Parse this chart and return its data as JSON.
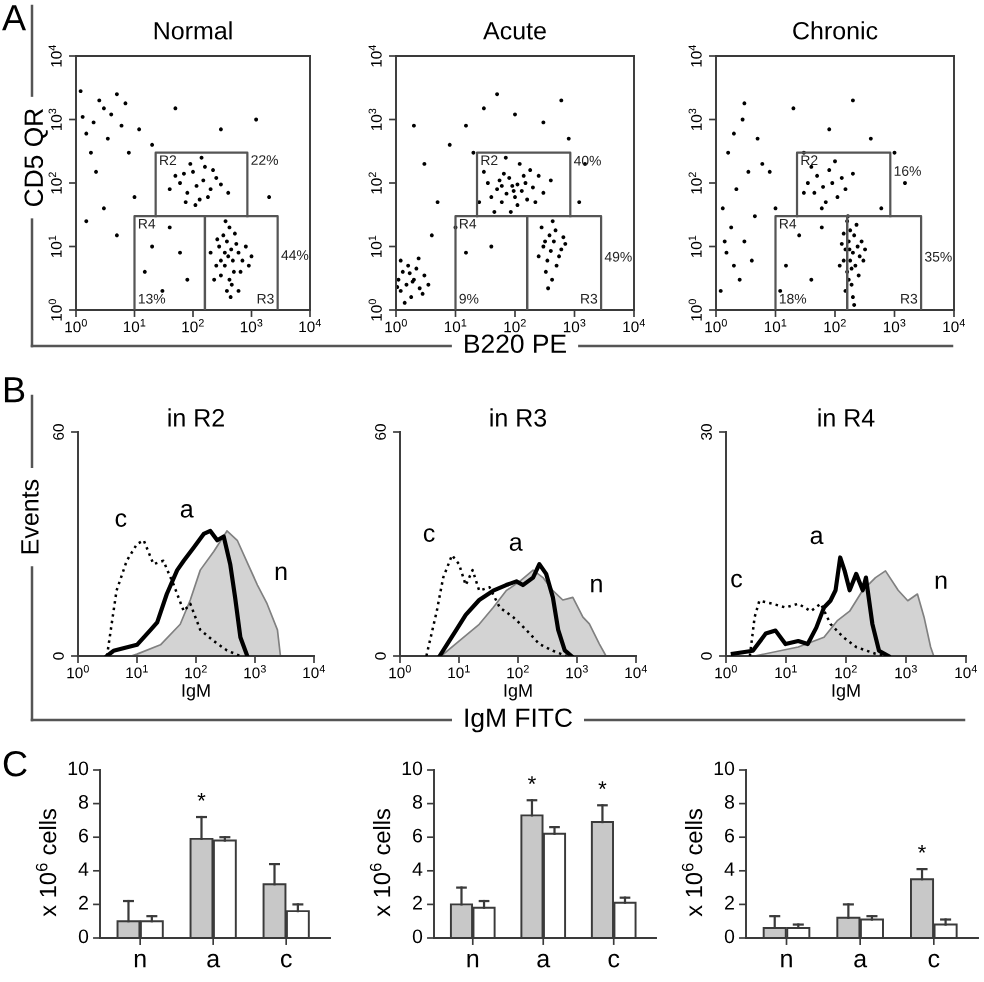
{
  "chart_data": [
    {
      "type": "scatter",
      "title": "Normal",
      "ylabel": "CD5 QR",
      "log": "xy",
      "xlim": [
        1,
        10000
      ],
      "ylim": [
        1,
        10000
      ],
      "xticks": [
        {
          "value": 1,
          "label": "10$^{0}$"
        },
        {
          "value": 10,
          "label": "10$^{1}$"
        },
        {
          "value": 100,
          "label": "10$^{2}$"
        },
        {
          "value": 1000,
          "label": "10$^{3}$"
        },
        {
          "value": 10000,
          "label": "10$^{4}$"
        }
      ],
      "yticks": [
        {
          "value": 1,
          "label": "10$^{0}$"
        },
        {
          "value": 10,
          "label": "10$^{1}$"
        },
        {
          "value": 100,
          "label": "10$^{2}$"
        },
        {
          "value": 1000,
          "label": "10$^{3}$"
        },
        {
          "value": 10000,
          "label": "10$^{4}$"
        }
      ],
      "annotations": [
        "A",
        {
          "text": "R2",
          "x": 23,
          "y": 300
        },
        {
          "text": "22%",
          "x": 850,
          "y": 220
        },
        {
          "text": "R4",
          "x": 10,
          "y": 30
        },
        {
          "text": "44%",
          "x": 2800,
          "y": 7
        },
        {
          "text": "13%",
          "x": 10,
          "y": 1.05
        },
        {
          "text": "R3",
          "x": 2800,
          "y": 1.05
        }
      ],
      "series": [
        {
          "type": "scatter",
          "marker": "circle",
          "color": "#000000",
          "x": [
            400,
            350,
            450,
            300,
            500,
            380,
            420,
            600,
            280,
            250,
            700,
            330,
            460,
            550,
            380,
            650,
            300,
            520,
            420,
            200,
            800,
            350,
            480,
            260,
            900,
            600,
            230,
            1000,
            440,
            360,
            115,
            80,
            150,
            60,
            200,
            100,
            130,
            250,
            70,
            180,
            40,
            300,
            90,
            160,
            110,
            220,
            50,
            400,
            140,
            75,
            2,
            3,
            1.5,
            4,
            2.5,
            6,
            1.3,
            3.5,
            8,
            1.8,
            5,
            2.2,
            12,
            1.2,
            7,
            20,
            15,
            40,
            30,
            60,
            3,
            5,
            1.5,
            80,
            20,
            50,
            300,
            1200,
            2000,
            10
          ],
          "values": [
            7,
            5,
            9,
            6,
            4,
            12,
            3,
            8,
            10,
            5,
            6,
            15,
            2.5,
            11,
            2,
            4,
            3.5,
            16,
            20,
            8,
            10,
            8,
            6,
            13,
            5,
            2,
            3,
            7,
            1.6,
            25,
            90,
            70,
            110,
            100,
            80,
            150,
            55,
            120,
            140,
            60,
            80,
            95,
            200,
            180,
            45,
            160,
            130,
            70,
            250,
            50,
            900,
            1500,
            600,
            1200,
            2000,
            800,
            1100,
            500,
            300,
            300,
            2500,
            150,
            700,
            2800,
            1800,
            10,
            4,
            20,
            2,
            8,
            40,
            15,
            25,
            3,
            400,
            1500,
            700,
            1000,
            60,
            60
          ]
        },
        {
          "type": "line",
          "color": "#555555",
          "x": [
            23,
            23,
            850,
            850
          ],
          "values": [
            30,
            300,
            300,
            30
          ]
        },
        {
          "type": "line",
          "color": "#555555",
          "x": [
            10,
            10,
            160,
            160
          ],
          "values": [
            1.05,
            30,
            30,
            1.05
          ]
        },
        {
          "type": "line",
          "color": "#555555",
          "x": [
            160,
            160,
            2800,
            2800
          ],
          "values": [
            1.05,
            30,
            30,
            1.05
          ]
        }
      ]
    },
    {
      "type": "scatter",
      "title": "Acute",
      "xlabel": "B220 PE",
      "log": "xy",
      "xlim": [
        1,
        10000
      ],
      "ylim": [
        1,
        10000
      ],
      "xticks": [
        {
          "value": 1,
          "label": "10$^{0}$"
        },
        {
          "value": 10,
          "label": "10$^{1}$"
        },
        {
          "value": 100,
          "label": "10$^{2}$"
        },
        {
          "value": 1000,
          "label": "10$^{3}$"
        },
        {
          "value": 10000,
          "label": "10$^{4}$"
        }
      ],
      "yticks": [
        {
          "value": 1,
          "label": "10$^{0}$"
        },
        {
          "value": 10,
          "label": "10$^{1}$"
        },
        {
          "value": 100,
          "label": "10$^{2}$"
        },
        {
          "value": 1000,
          "label": "10$^{3}$"
        },
        {
          "value": 10000,
          "label": "10$^{4}$"
        }
      ],
      "annotations": [
        {
          "text": "R2",
          "x": 23,
          "y": 300
        },
        {
          "text": "40%",
          "x": 850,
          "y": 215
        },
        {
          "text": "R4",
          "x": 10,
          "y": 30
        },
        {
          "text": "49%",
          "x": 2800,
          "y": 6.6
        },
        {
          "text": "9%",
          "x": 10,
          "y": 1.05
        },
        {
          "text": "R3",
          "x": 2800,
          "y": 1.05
        }
      ],
      "series": [
        {
          "type": "scatter",
          "marker": "circle",
          "color": "#000000",
          "x": [
            1.5,
            1.2,
            2,
            1.3,
            1.8,
            2.5,
            1.1,
            1.6,
            3,
            1.4,
            2.2,
            1.2,
            1.9,
            2.8,
            1.05,
            3.5,
            1.7,
            2.4,
            72,
            50,
            100,
            60,
            90,
            130,
            40,
            150,
            80,
            200,
            35,
            110,
            65,
            250,
            45,
            120,
            160,
            55,
            300,
            85,
            25,
            180,
            70,
            400,
            140,
            30,
            95,
            60,
            220,
            110,
            400,
            350,
            450,
            300,
            500,
            380,
            420,
            600,
            280,
            550,
            330,
            480,
            700,
            250,
            360,
            650,
            430,
            320,
            5,
            3,
            8,
            15,
            30,
            100,
            300,
            800,
            1500,
            10,
            4,
            20,
            600,
            2,
            50,
            15,
            1200,
            40
          ],
          "values": [
            2.5,
            2,
            3,
            4,
            1.6,
            2.2,
            3,
            5,
            3.5,
            1.3,
            4.5,
            6,
            2.8,
            1.8,
            2.3,
            2.5,
            3.8,
            6.5,
            68,
            80,
            60,
            50,
            90,
            75,
            60,
            100,
            120,
            85,
            100,
            45,
            140,
            130,
            35,
            200,
            55,
            110,
            70,
            35,
            50,
            160,
            250,
            110,
            130,
            150,
            75,
            90,
            50,
            95,
            8.5,
            6,
            12,
            10,
            5,
            15,
            3,
            9,
            20,
            7,
            4,
            18,
            11,
            7,
            2.2,
            14,
            25,
            12,
            50,
            200,
            400,
            800,
            1500,
            1200,
            900,
            500,
            200,
            20,
            15,
            300,
            2000,
            800,
            2500,
            8,
            50,
            10
          ]
        },
        {
          "type": "line",
          "color": "#555555",
          "x": [
            23,
            23,
            850,
            850
          ],
          "values": [
            30,
            300,
            300,
            30
          ]
        },
        {
          "type": "line",
          "color": "#555555",
          "x": [
            10,
            10,
            160,
            160
          ],
          "values": [
            1.05,
            30,
            30,
            1.05
          ]
        },
        {
          "type": "line",
          "color": "#555555",
          "x": [
            160,
            160,
            2800,
            2800
          ],
          "values": [
            1.05,
            30,
            30,
            1.05
          ]
        }
      ]
    },
    {
      "type": "scatter",
      "title": "Chronic",
      "log": "xy",
      "xlim": [
        1,
        10000
      ],
      "ylim": [
        1,
        10000
      ],
      "xticks": [
        {
          "value": 1,
          "label": "10$^{0}$"
        },
        {
          "value": 10,
          "label": "10$^{1}$"
        },
        {
          "value": 100,
          "label": "10$^{2}$"
        },
        {
          "value": 1000,
          "label": "10$^{3}$"
        },
        {
          "value": 10000,
          "label": "10$^{4}$"
        }
      ],
      "yticks": [
        {
          "value": 1,
          "label": "10$^{0}$"
        },
        {
          "value": 10,
          "label": "10$^{1}$"
        },
        {
          "value": 100,
          "label": "10$^{2}$"
        },
        {
          "value": 1000,
          "label": "10$^{3}$"
        },
        {
          "value": 10000,
          "label": "10$^{4}$"
        }
      ],
      "annotations": [
        {
          "text": "R2",
          "x": 23,
          "y": 300
        },
        {
          "text": "16%",
          "x": 850,
          "y": 148
        },
        {
          "text": "R4",
          "x": 10,
          "y": 30
        },
        {
          "text": "35%",
          "x": 2800,
          "y": 6.6
        },
        {
          "text": "18%",
          "x": 10,
          "y": 1.05
        },
        {
          "text": "R3",
          "x": 2800,
          "y": 1.05
        }
      ],
      "series": [
        {
          "type": "scatter",
          "marker": "circle",
          "color": "#000000",
          "x": [
            180,
            160,
            200,
            170,
            220,
            150,
            190,
            240,
            180,
            140,
            210,
            170,
            260,
            200,
            130,
            230,
            160,
            190,
            280,
            150,
            250,
            175,
            120,
            300,
            210,
            140,
            165,
            320,
            63,
            45,
            90,
            50,
            110,
            35,
            80,
            130,
            70,
            40,
            150,
            100,
            60,
            200,
            30,
            2,
            1.5,
            2.5,
            3,
            1.8,
            4,
            1.3,
            2.2,
            3.5,
            1.6,
            5,
            2.8,
            1.2,
            4.5,
            2,
            6,
            3,
            1.4,
            15,
            25,
            40,
            10,
            60,
            30,
            80,
            400,
            1000,
            12,
            600,
            20,
            200,
            1500,
            8
          ],
          "values": [
            6,
            4,
            8,
            12,
            5,
            9,
            2.5,
            10,
            18,
            6,
            15,
            3,
            7,
            1.6,
            11,
            22,
            25,
            4.5,
            12,
            2,
            3.5,
            9,
            5,
            6,
            1.2,
            16,
            30,
            9,
            87,
            70,
            100,
            130,
            60,
            100,
            160,
            120,
            50,
            180,
            80,
            220,
            40,
            140,
            70,
            5,
            8,
            3,
            12,
            20,
            6,
            40,
            80,
            150,
            300,
            500,
            1000,
            2,
            30,
            600,
            200,
            1800,
            12,
            5,
            15,
            3,
            40,
            20,
            300,
            700,
            500,
            300,
            2,
            40,
            1500,
            2000,
            100,
            150
          ]
        },
        {
          "type": "line",
          "color": "#555555",
          "x": [
            23,
            23,
            850,
            850
          ],
          "values": [
            30,
            300,
            300,
            30
          ]
        },
        {
          "type": "line",
          "color": "#555555",
          "x": [
            10,
            10,
            160,
            160
          ],
          "values": [
            1.05,
            30,
            30,
            1.05
          ]
        },
        {
          "type": "line",
          "color": "#555555",
          "x": [
            160,
            160,
            2800,
            2800
          ],
          "values": [
            1.05,
            30,
            30,
            1.05
          ]
        }
      ]
    },
    {
      "type": "line",
      "title": "in R2",
      "xlabel": "IgM",
      "ylabel": "Events",
      "log": "x",
      "xlim": [
        1,
        10000
      ],
      "ylim": [
        0,
        60
      ],
      "yticks": [
        0,
        60
      ],
      "xticks": [
        {
          "value": 1,
          "label": "10$^{0}$"
        },
        {
          "value": 10,
          "label": "10$^{1}$"
        },
        {
          "value": 100,
          "label": "10$^{2}$"
        },
        {
          "value": 1000,
          "label": "10$^{3}$"
        },
        {
          "value": 10000,
          "label": "10$^{4}$"
        }
      ],
      "annotations": [
        "B"
      ],
      "series": [
        {
          "type": "area",
          "name": "n",
          "color": "#d3d3d3",
          "x": [
            8,
            10,
            25,
            54,
            80,
            118,
            200,
            335,
            500,
            740,
            1100,
            1600,
            2400,
            2700
          ],
          "values": [
            0,
            0.5,
            3,
            8.5,
            15,
            23,
            28,
            33.5,
            31,
            25,
            19,
            14,
            7,
            0
          ]
        },
        {
          "type": "line",
          "name": "a",
          "line_style": "solid",
          "color": "#000000",
          "x": [
            3.1,
            4,
            10,
            17,
            22,
            32,
            48,
            62,
            91,
            135,
            175,
            229,
            295,
            380,
            460,
            565,
            740
          ],
          "values": [
            0,
            1.4,
            3,
            7,
            9,
            16.6,
            23,
            25.5,
            29,
            32.7,
            33.5,
            31,
            32,
            24.6,
            15.7,
            5,
            0
          ]
        },
        {
          "type": "line",
          "name": "c",
          "line_style": "dotted",
          "color": "#000000",
          "x": [
            3.1,
            4.5,
            6.7,
            10,
            13,
            19,
            28,
            42,
            62,
            80,
            118,
            200,
            335,
            565
          ],
          "values": [
            0,
            17.5,
            25.5,
            30,
            31,
            24.6,
            25.5,
            19,
            12,
            14,
            7,
            4,
            1.5,
            0
          ]
        }
      ]
    },
    {
      "type": "line",
      "title": "in R3",
      "xlabel": "IgM",
      "log": "x",
      "xlim": [
        1,
        10000
      ],
      "ylim": [
        0,
        60
      ],
      "yticks": [
        0,
        60
      ],
      "xticks": [
        {
          "value": 1,
          "label": "10$^{0}$"
        },
        {
          "value": 10,
          "label": "10$^{1}$"
        },
        {
          "value": 100,
          "label": "10$^{2}$"
        },
        {
          "value": 1000,
          "label": "10$^{3}$"
        },
        {
          "value": 10000,
          "label": "10$^{4}$"
        }
      ],
      "annotations": [
        "IgM FITC"
      ],
      "series": [
        {
          "type": "area",
          "name": "n",
          "color": "#d3d3d3",
          "x": [
            5,
            10,
            22,
            38,
            63,
            107,
            180,
            265,
            390,
            575,
            850,
            1260,
            1620,
            2400,
            3100
          ],
          "values": [
            0,
            4,
            8.5,
            13,
            17.5,
            20,
            23,
            21,
            17.5,
            15,
            15.7,
            10.4,
            8.6,
            3.2,
            0
          ]
        },
        {
          "type": "line",
          "name": "a",
          "line_style": "solid",
          "color": "#000000",
          "x": [
            4.7,
            6.2,
            9,
            13,
            22,
            38,
            63,
            94,
            121,
            180,
            230,
            300,
            390,
            480,
            620,
            800
          ],
          "values": [
            0,
            3,
            7,
            11,
            15,
            17.5,
            19,
            20,
            19,
            21,
            24.6,
            22,
            15.7,
            7,
            1.5,
            0
          ]
        },
        {
          "type": "line",
          "name": "c",
          "line_style": "dotted",
          "color": "#000000",
          "x": [
            2.8,
            4.2,
            5.4,
            7.6,
            10,
            13,
            17,
            22,
            33,
            49,
            83,
            138,
            230,
            390,
            660
          ],
          "values": [
            0,
            12,
            21,
            27,
            24.6,
            19,
            23,
            17.5,
            18.4,
            13,
            10.4,
            7,
            3.2,
            1.4,
            0
          ]
        }
      ]
    },
    {
      "type": "line",
      "title": "in R4",
      "xlabel": "IgM",
      "log": "x",
      "xlim": [
        1,
        10000
      ],
      "ylim": [
        0,
        30
      ],
      "yticks": [
        0,
        30
      ],
      "xticks": [
        {
          "value": 1,
          "label": "10$^{0}$"
        },
        {
          "value": 10,
          "label": "10$^{1}$"
        },
        {
          "value": 100,
          "label": "10$^{2}$"
        },
        {
          "value": 1000,
          "label": "10$^{3}$"
        },
        {
          "value": 10000,
          "label": "10$^{4}$"
        }
      ],
      "series": [
        {
          "type": "area",
          "name": "n",
          "color": "#d3d3d3",
          "x": [
            3,
            16,
            43,
            71,
            115,
            190,
            310,
            455,
            740,
            1070,
            1550,
            2000,
            2570,
            2900
          ],
          "values": [
            0,
            1.2,
            2.5,
            4.7,
            6,
            8.8,
            10.5,
            11.4,
            8.8,
            7.4,
            8.3,
            5.2,
            1.2,
            0
          ]
        },
        {
          "type": "line",
          "name": "a",
          "line_style": "solid",
          "color": "#000000",
          "x": [
            1.3,
            2.8,
            4.6,
            6.7,
            9.8,
            16,
            23,
            32,
            43,
            55,
            67,
            80,
            95,
            115,
            148,
            190,
            215,
            275,
            355,
            510
          ],
          "values": [
            0.3,
            0.7,
            3,
            3.4,
            1.6,
            2,
            1.6,
            3.8,
            6.5,
            7.4,
            8.8,
            13.2,
            11.4,
            8.8,
            11,
            8.8,
            10.5,
            4.3,
            0.7,
            0
          ]
        },
        {
          "type": "line",
          "name": "c",
          "line_style": "dotted",
          "color": "#000000",
          "x": [
            2.5,
            3,
            3.6,
            5.9,
            9.8,
            16,
            26,
            38,
            55,
            91,
            148,
            310,
            510
          ],
          "values": [
            0,
            5.2,
            7.4,
            7,
            6.5,
            7,
            6,
            7,
            4.3,
            2.5,
            1.2,
            0.3,
            0
          ]
        }
      ]
    },
    {
      "type": "bar",
      "categories": [
        "n",
        "a",
        "c"
      ],
      "ylabel": "x 10$^{6}$ cells",
      "ylim": [
        0,
        10
      ],
      "yticks": [
        0,
        2,
        4,
        6,
        8,
        10
      ],
      "annotations": [
        "C"
      ],
      "series": [
        {
          "color": "#c8c8c8",
          "values": [
            1.0,
            5.9,
            3.2
          ],
          "errors": [
            [
              1.0,
              2.2
            ],
            [
              5.9,
              7.2
            ],
            [
              3.2,
              4.4
            ]
          ],
          "value_labels": [
            null,
            "*",
            null
          ]
        },
        {
          "color": "#ffffff",
          "values": [
            1.0,
            5.8,
            1.6
          ],
          "errors": [
            [
              1.0,
              1.3
            ],
            [
              5.8,
              6.0
            ],
            [
              1.6,
              2.0
            ]
          ]
        }
      ]
    },
    {
      "type": "bar",
      "categories": [
        "n",
        "a",
        "c"
      ],
      "ylabel": "x 10$^{6}$ cells",
      "ylim": [
        0,
        10
      ],
      "yticks": [
        0,
        2,
        4,
        6,
        8,
        10
      ],
      "series": [
        {
          "color": "#c8c8c8",
          "values": [
            2.0,
            7.3,
            6.9
          ],
          "errors": [
            [
              2.0,
              3.0
            ],
            [
              7.3,
              8.2
            ],
            [
              6.9,
              7.9
            ]
          ],
          "value_labels": [
            null,
            "*",
            "*"
          ]
        },
        {
          "color": "#ffffff",
          "values": [
            1.8,
            6.2,
            2.1
          ],
          "errors": [
            [
              1.8,
              2.2
            ],
            [
              6.2,
              6.6
            ],
            [
              2.1,
              2.4
            ]
          ]
        }
      ]
    },
    {
      "type": "bar",
      "categories": [
        "n",
        "a",
        "c"
      ],
      "ylabel": "x 10$^{6}$ cells",
      "ylim": [
        0,
        10
      ],
      "yticks": [
        0,
        2,
        4,
        6,
        8,
        10
      ],
      "series": [
        {
          "color": "#c8c8c8",
          "values": [
            0.6,
            1.2,
            3.5
          ],
          "errors": [
            [
              0.6,
              1.3
            ],
            [
              1.2,
              2.0
            ],
            [
              3.5,
              4.1
            ]
          ],
          "value_labels": [
            null,
            null,
            "*"
          ]
        },
        {
          "color": "#ffffff",
          "values": [
            0.6,
            1.1,
            0.8
          ],
          "errors": [
            [
              0.6,
              0.8
            ],
            [
              1.1,
              1.3
            ],
            [
              0.8,
              1.1
            ]
          ]
        }
      ]
    }
  ]
}
